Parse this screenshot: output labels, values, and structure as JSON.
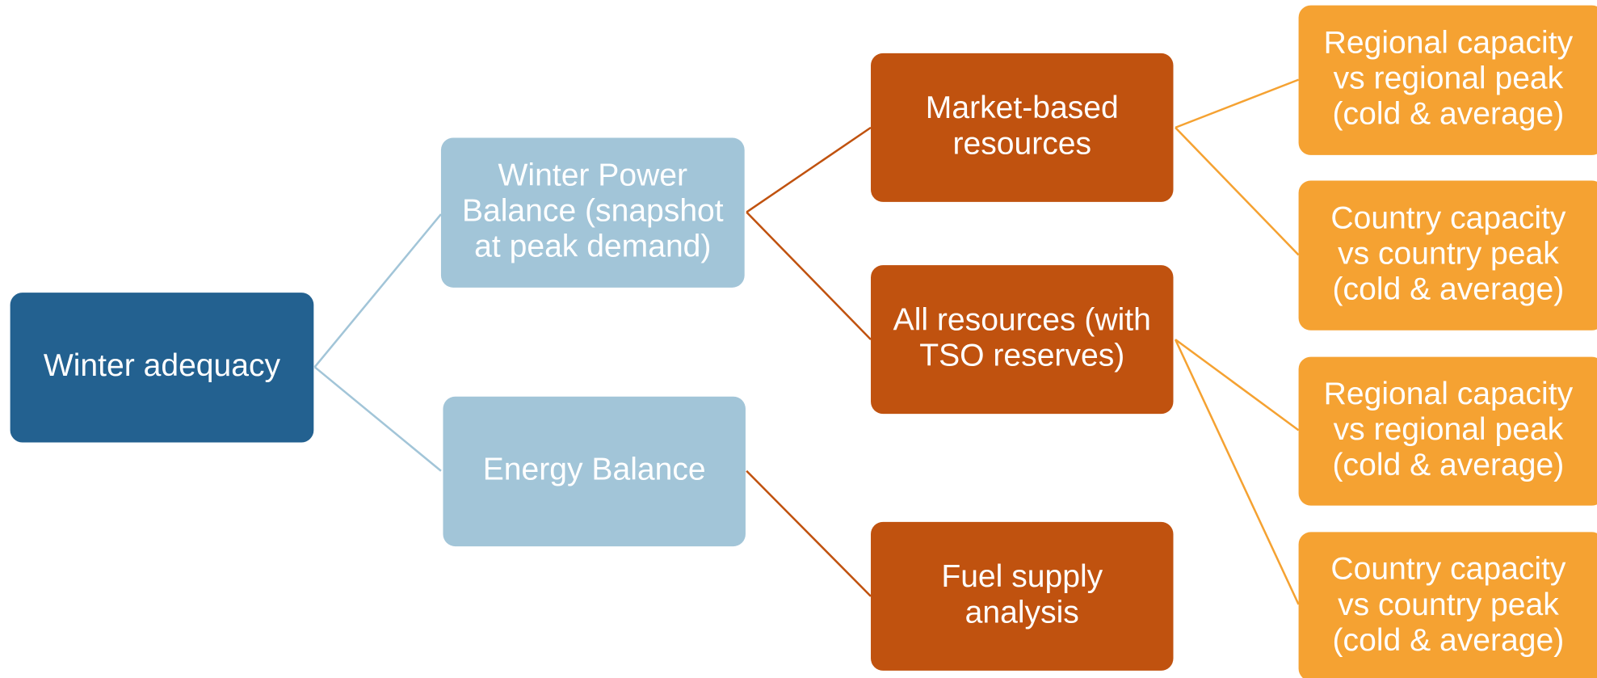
{
  "nodes": [
    {
      "lines": [
        "Winter adequacy"
      ]
    },
    {
      "lines": [
        "Winter Power",
        "Balance (snapshot",
        "at peak demand)"
      ]
    },
    {
      "lines": [
        "Energy Balance"
      ]
    },
    {
      "lines": [
        "Market-based",
        "resources"
      ]
    },
    {
      "lines": [
        "All resources (with",
        "TSO reserves)"
      ]
    },
    {
      "lines": [
        "Fuel supply",
        "analysis"
      ]
    },
    {
      "lines": [
        "Regional capacity",
        "vs regional peak",
        "(cold & average)"
      ]
    },
    {
      "lines": [
        "Country capacity",
        "vs country peak",
        "(cold & average)"
      ]
    },
    {
      "lines": [
        "Regional capacity",
        "vs regional peak",
        "(cold & average)"
      ]
    },
    {
      "lines": [
        "Country capacity",
        "vs country peak",
        "(cold & average)"
      ]
    }
  ]
}
